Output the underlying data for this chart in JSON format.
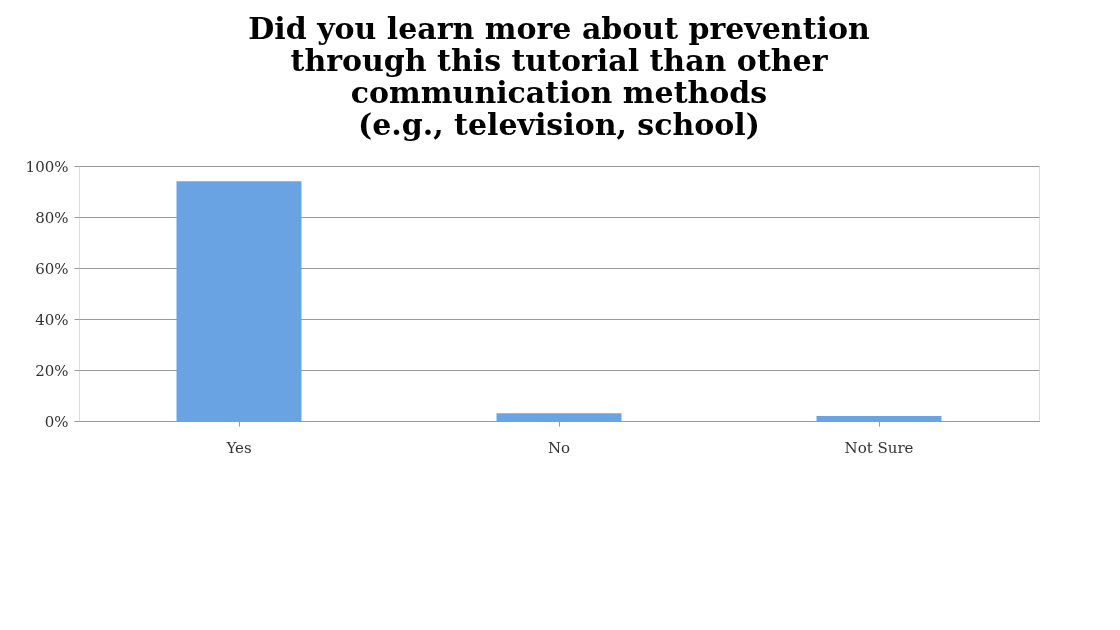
{
  "chart_data": {
    "type": "bar",
    "title": [
      "Did you learn more about prevention",
      "through this tutorial than other",
      "communication methods",
      "(e.g., television, school)"
    ],
    "categories": [
      "Yes",
      "No",
      "Not Sure"
    ],
    "values": [
      94,
      3,
      2
    ],
    "color": "#6aa3e3",
    "ylim": [
      0,
      100
    ],
    "yticks": [
      {
        "value": 0,
        "label": "0%"
      },
      {
        "value": 20,
        "label": "20%"
      },
      {
        "value": 40,
        "label": "40%"
      },
      {
        "value": 60,
        "label": "60%"
      },
      {
        "value": 80,
        "label": "80%"
      },
      {
        "value": 100,
        "label": "100%"
      }
    ],
    "grid": "y"
  }
}
